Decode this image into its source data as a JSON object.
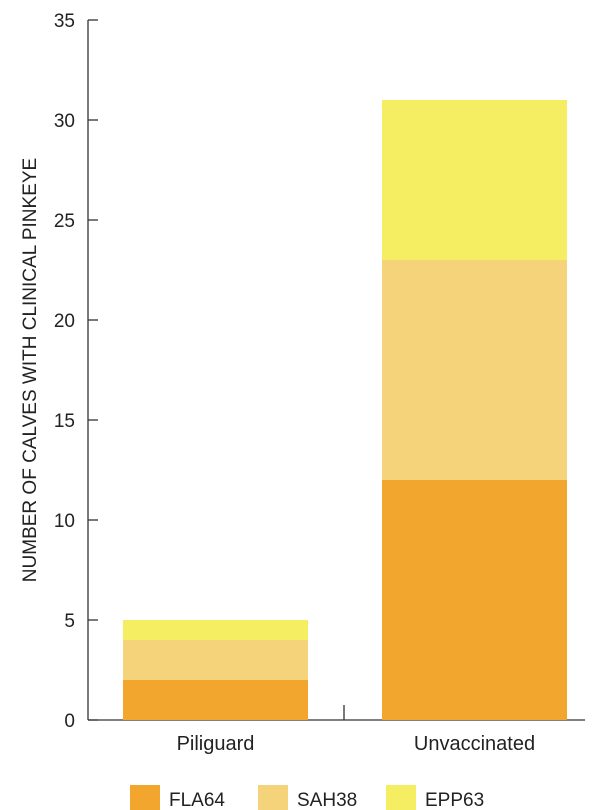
{
  "chart_data": {
    "type": "bar",
    "stacked": true,
    "title": "",
    "xlabel": "",
    "ylabel": "NUMBER OF CALVES WITH CLINICAL PINKEYE",
    "ylim": [
      0,
      35
    ],
    "yticks": [
      0,
      5,
      10,
      15,
      20,
      25,
      30,
      35
    ],
    "categories": [
      "Piliguard",
      "Unvaccinated"
    ],
    "series": [
      {
        "name": "FLA64",
        "color": "#f3a62d",
        "values": [
          2,
          12
        ]
      },
      {
        "name": "SAH38",
        "color": "#f5d37a",
        "values": [
          2,
          11
        ]
      },
      {
        "name": "EPP63",
        "color": "#f5ed62",
        "values": [
          1,
          8
        ]
      }
    ],
    "grid": false,
    "legend_position": "bottom"
  }
}
